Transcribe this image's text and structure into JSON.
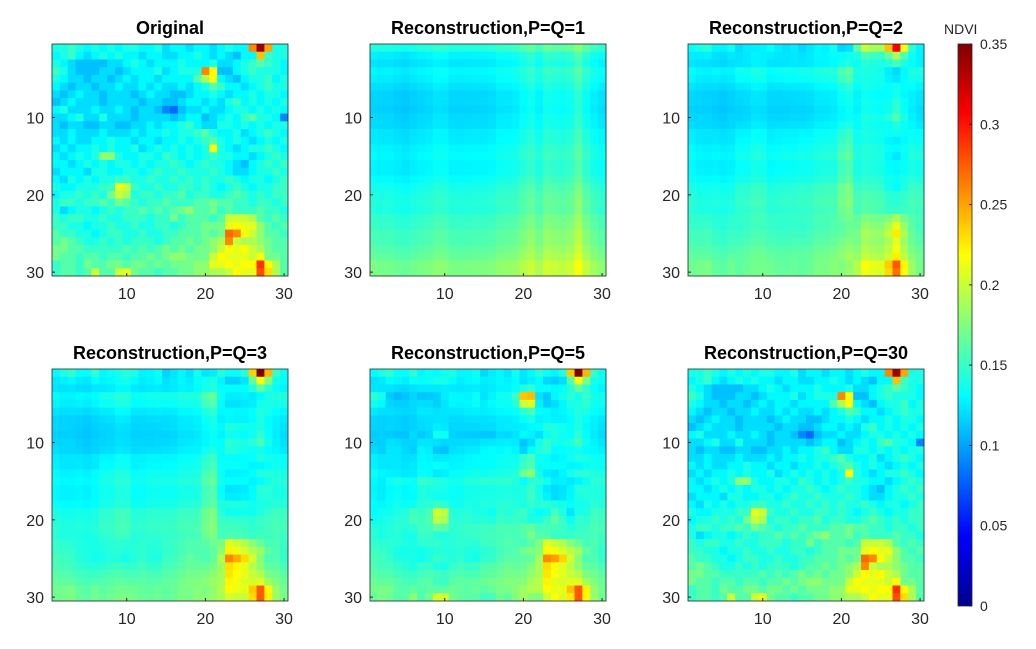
{
  "chart_data": {
    "type": "heatmap",
    "colormap": "jet",
    "colorbar": {
      "label": "NDVI",
      "range": [
        0,
        0.35
      ],
      "ticks": [
        "0",
        "0.05",
        "0.1",
        "0.15",
        "0.2",
        "0.25",
        "0.3",
        "0.35"
      ]
    },
    "x_ticks": [
      "10",
      "20",
      "30"
    ],
    "y_ticks": [
      "10",
      "20",
      "30"
    ],
    "xlim": [
      0.5,
      30.5
    ],
    "ylim": [
      0.5,
      30.5
    ],
    "panels": [
      {
        "title": "Original",
        "components": 30
      },
      {
        "title": "Reconstruction,P=Q=1",
        "components": 1
      },
      {
        "title": "Reconstruction,P=Q=2",
        "components": 2
      },
      {
        "title": "Reconstruction,P=Q=3",
        "components": 3
      },
      {
        "title": "Reconstruction,P=Q=5",
        "components": 5
      },
      {
        "title": "Reconstruction,P=Q=30",
        "components": 30
      }
    ],
    "original_matrix": [
      [
        0.14,
        0.14,
        0.15,
        0.14,
        0.13,
        0.14,
        0.13,
        0.14,
        0.13,
        0.14,
        0.14,
        0.13,
        0.13,
        0.14,
        0.12,
        0.13,
        0.13,
        0.12,
        0.13,
        0.13,
        0.12,
        0.13,
        0.14,
        0.13,
        0.13,
        0.26,
        0.34,
        0.25,
        0.14,
        0.14
      ],
      [
        0.13,
        0.14,
        0.15,
        0.13,
        0.12,
        0.13,
        0.14,
        0.13,
        0.14,
        0.13,
        0.13,
        0.12,
        0.13,
        0.13,
        0.12,
        0.12,
        0.13,
        0.13,
        0.14,
        0.13,
        0.12,
        0.13,
        0.12,
        0.11,
        0.13,
        0.13,
        0.24,
        0.15,
        0.14,
        0.14
      ],
      [
        0.14,
        0.13,
        0.12,
        0.11,
        0.11,
        0.11,
        0.11,
        0.12,
        0.12,
        0.13,
        0.14,
        0.13,
        0.12,
        0.13,
        0.13,
        0.13,
        0.14,
        0.13,
        0.13,
        0.13,
        0.14,
        0.12,
        0.12,
        0.13,
        0.14,
        0.15,
        0.16,
        0.15,
        0.14,
        0.13
      ],
      [
        0.15,
        0.14,
        0.12,
        0.11,
        0.11,
        0.11,
        0.12,
        0.12,
        0.11,
        0.12,
        0.13,
        0.13,
        0.13,
        0.14,
        0.12,
        0.13,
        0.14,
        0.14,
        0.14,
        0.26,
        0.22,
        0.11,
        0.11,
        0.13,
        0.14,
        0.15,
        0.14,
        0.14,
        0.14,
        0.13
      ],
      [
        0.14,
        0.13,
        0.12,
        0.12,
        0.11,
        0.12,
        0.12,
        0.11,
        0.12,
        0.13,
        0.12,
        0.13,
        0.13,
        0.12,
        0.13,
        0.13,
        0.13,
        0.13,
        0.16,
        0.19,
        0.22,
        0.13,
        0.12,
        0.11,
        0.13,
        0.14,
        0.14,
        0.15,
        0.13,
        0.14
      ],
      [
        0.13,
        0.12,
        0.11,
        0.12,
        0.12,
        0.11,
        0.12,
        0.12,
        0.13,
        0.12,
        0.12,
        0.13,
        0.12,
        0.13,
        0.12,
        0.12,
        0.13,
        0.12,
        0.13,
        0.14,
        0.16,
        0.15,
        0.13,
        0.13,
        0.12,
        0.13,
        0.14,
        0.15,
        0.14,
        0.14
      ],
      [
        0.12,
        0.11,
        0.12,
        0.13,
        0.12,
        0.12,
        0.11,
        0.12,
        0.12,
        0.12,
        0.11,
        0.12,
        0.13,
        0.12,
        0.12,
        0.11,
        0.11,
        0.12,
        0.13,
        0.13,
        0.14,
        0.13,
        0.12,
        0.13,
        0.13,
        0.14,
        0.13,
        0.14,
        0.14,
        0.13
      ],
      [
        0.11,
        0.12,
        0.13,
        0.12,
        0.12,
        0.12,
        0.11,
        0.12,
        0.12,
        0.12,
        0.12,
        0.11,
        0.12,
        0.12,
        0.11,
        0.11,
        0.12,
        0.13,
        0.13,
        0.12,
        0.13,
        0.12,
        0.14,
        0.15,
        0.13,
        0.14,
        0.13,
        0.14,
        0.13,
        0.14
      ],
      [
        0.13,
        0.14,
        0.12,
        0.12,
        0.12,
        0.13,
        0.12,
        0.12,
        0.13,
        0.12,
        0.11,
        0.12,
        0.12,
        0.11,
        0.09,
        0.08,
        0.11,
        0.12,
        0.12,
        0.13,
        0.12,
        0.12,
        0.13,
        0.14,
        0.14,
        0.13,
        0.14,
        0.13,
        0.14,
        0.13
      ],
      [
        0.12,
        0.12,
        0.13,
        0.14,
        0.12,
        0.12,
        0.14,
        0.12,
        0.12,
        0.12,
        0.11,
        0.12,
        0.12,
        0.12,
        0.12,
        0.11,
        0.12,
        0.13,
        0.13,
        0.11,
        0.12,
        0.13,
        0.14,
        0.13,
        0.15,
        0.16,
        0.14,
        0.14,
        0.13,
        0.09
      ],
      [
        0.12,
        0.11,
        0.12,
        0.12,
        0.11,
        0.11,
        0.12,
        0.12,
        0.11,
        0.11,
        0.12,
        0.12,
        0.13,
        0.12,
        0.13,
        0.13,
        0.14,
        0.15,
        0.13,
        0.12,
        0.12,
        0.14,
        0.14,
        0.13,
        0.14,
        0.13,
        0.14,
        0.13,
        0.14,
        0.14
      ],
      [
        0.12,
        0.12,
        0.13,
        0.12,
        0.12,
        0.12,
        0.13,
        0.12,
        0.12,
        0.12,
        0.13,
        0.12,
        0.13,
        0.13,
        0.14,
        0.13,
        0.14,
        0.14,
        0.15,
        0.16,
        0.14,
        0.13,
        0.13,
        0.14,
        0.12,
        0.13,
        0.14,
        0.15,
        0.14,
        0.13
      ],
      [
        0.13,
        0.12,
        0.13,
        0.12,
        0.12,
        0.13,
        0.13,
        0.14,
        0.13,
        0.13,
        0.12,
        0.13,
        0.13,
        0.12,
        0.13,
        0.13,
        0.14,
        0.13,
        0.14,
        0.15,
        0.16,
        0.14,
        0.13,
        0.14,
        0.13,
        0.12,
        0.13,
        0.14,
        0.13,
        0.14
      ],
      [
        0.12,
        0.13,
        0.12,
        0.13,
        0.13,
        0.14,
        0.13,
        0.14,
        0.13,
        0.13,
        0.14,
        0.12,
        0.13,
        0.14,
        0.13,
        0.14,
        0.13,
        0.14,
        0.13,
        0.14,
        0.22,
        0.14,
        0.13,
        0.12,
        0.13,
        0.14,
        0.14,
        0.15,
        0.14,
        0.13
      ],
      [
        0.13,
        0.12,
        0.13,
        0.14,
        0.13,
        0.14,
        0.18,
        0.18,
        0.14,
        0.13,
        0.13,
        0.14,
        0.14,
        0.13,
        0.15,
        0.14,
        0.13,
        0.14,
        0.13,
        0.14,
        0.15,
        0.14,
        0.14,
        0.13,
        0.13,
        0.12,
        0.13,
        0.14,
        0.15,
        0.14
      ],
      [
        0.13,
        0.13,
        0.12,
        0.13,
        0.14,
        0.13,
        0.14,
        0.13,
        0.14,
        0.14,
        0.13,
        0.14,
        0.13,
        0.14,
        0.14,
        0.15,
        0.14,
        0.13,
        0.14,
        0.15,
        0.14,
        0.14,
        0.13,
        0.12,
        0.11,
        0.13,
        0.14,
        0.15,
        0.14,
        0.15
      ],
      [
        0.12,
        0.13,
        0.13,
        0.13,
        0.12,
        0.14,
        0.14,
        0.13,
        0.13,
        0.14,
        0.14,
        0.13,
        0.14,
        0.15,
        0.14,
        0.14,
        0.15,
        0.14,
        0.14,
        0.14,
        0.15,
        0.14,
        0.13,
        0.12,
        0.12,
        0.13,
        0.14,
        0.14,
        0.15,
        0.14
      ],
      [
        0.13,
        0.12,
        0.14,
        0.13,
        0.14,
        0.13,
        0.14,
        0.14,
        0.15,
        0.15,
        0.14,
        0.14,
        0.15,
        0.14,
        0.14,
        0.15,
        0.14,
        0.15,
        0.14,
        0.15,
        0.14,
        0.14,
        0.15,
        0.14,
        0.13,
        0.14,
        0.14,
        0.13,
        0.14,
        0.15
      ],
      [
        0.14,
        0.13,
        0.13,
        0.14,
        0.14,
        0.14,
        0.15,
        0.15,
        0.21,
        0.2,
        0.15,
        0.14,
        0.14,
        0.15,
        0.14,
        0.14,
        0.15,
        0.15,
        0.14,
        0.15,
        0.14,
        0.13,
        0.14,
        0.15,
        0.14,
        0.13,
        0.14,
        0.14,
        0.15,
        0.15
      ],
      [
        0.13,
        0.14,
        0.14,
        0.15,
        0.14,
        0.15,
        0.14,
        0.17,
        0.2,
        0.19,
        0.14,
        0.15,
        0.15,
        0.14,
        0.15,
        0.15,
        0.16,
        0.14,
        0.15,
        0.15,
        0.14,
        0.14,
        0.15,
        0.16,
        0.15,
        0.14,
        0.15,
        0.14,
        0.15,
        0.15
      ],
      [
        0.14,
        0.15,
        0.15,
        0.14,
        0.15,
        0.15,
        0.16,
        0.15,
        0.17,
        0.16,
        0.15,
        0.14,
        0.15,
        0.15,
        0.16,
        0.15,
        0.15,
        0.15,
        0.16,
        0.16,
        0.17,
        0.16,
        0.16,
        0.15,
        0.15,
        0.14,
        0.15,
        0.15,
        0.14,
        0.15
      ],
      [
        0.14,
        0.12,
        0.13,
        0.14,
        0.14,
        0.13,
        0.14,
        0.15,
        0.14,
        0.15,
        0.15,
        0.16,
        0.15,
        0.16,
        0.15,
        0.16,
        0.17,
        0.18,
        0.16,
        0.16,
        0.17,
        0.15,
        0.16,
        0.15,
        0.15,
        0.15,
        0.16,
        0.15,
        0.15,
        0.14
      ],
      [
        0.15,
        0.14,
        0.15,
        0.15,
        0.14,
        0.14,
        0.15,
        0.14,
        0.14,
        0.15,
        0.15,
        0.15,
        0.14,
        0.15,
        0.15,
        0.17,
        0.15,
        0.16,
        0.16,
        0.16,
        0.15,
        0.16,
        0.2,
        0.2,
        0.2,
        0.19,
        0.16,
        0.15,
        0.16,
        0.15
      ],
      [
        0.15,
        0.15,
        0.14,
        0.14,
        0.13,
        0.14,
        0.14,
        0.15,
        0.14,
        0.14,
        0.15,
        0.14,
        0.14,
        0.15,
        0.15,
        0.14,
        0.15,
        0.16,
        0.16,
        0.17,
        0.17,
        0.17,
        0.21,
        0.22,
        0.21,
        0.21,
        0.18,
        0.16,
        0.15,
        0.16
      ],
      [
        0.16,
        0.15,
        0.15,
        0.14,
        0.14,
        0.13,
        0.14,
        0.15,
        0.15,
        0.14,
        0.14,
        0.15,
        0.14,
        0.14,
        0.15,
        0.15,
        0.16,
        0.16,
        0.16,
        0.17,
        0.16,
        0.17,
        0.27,
        0.26,
        0.22,
        0.2,
        0.18,
        0.16,
        0.16,
        0.15
      ],
      [
        0.16,
        0.17,
        0.16,
        0.15,
        0.14,
        0.14,
        0.15,
        0.14,
        0.15,
        0.14,
        0.15,
        0.15,
        0.15,
        0.14,
        0.15,
        0.16,
        0.16,
        0.17,
        0.16,
        0.17,
        0.18,
        0.19,
        0.26,
        0.2,
        0.19,
        0.19,
        0.18,
        0.17,
        0.16,
        0.16
      ],
      [
        0.17,
        0.17,
        0.16,
        0.16,
        0.15,
        0.15,
        0.15,
        0.15,
        0.15,
        0.16,
        0.15,
        0.16,
        0.15,
        0.16,
        0.17,
        0.16,
        0.17,
        0.16,
        0.17,
        0.17,
        0.18,
        0.2,
        0.22,
        0.21,
        0.22,
        0.2,
        0.19,
        0.17,
        0.16,
        0.16
      ],
      [
        0.17,
        0.16,
        0.16,
        0.15,
        0.16,
        0.16,
        0.15,
        0.16,
        0.16,
        0.15,
        0.16,
        0.16,
        0.17,
        0.16,
        0.17,
        0.18,
        0.18,
        0.17,
        0.17,
        0.17,
        0.2,
        0.22,
        0.21,
        0.21,
        0.21,
        0.2,
        0.22,
        0.17,
        0.17,
        0.16
      ],
      [
        0.15,
        0.16,
        0.16,
        0.15,
        0.17,
        0.16,
        0.16,
        0.17,
        0.17,
        0.16,
        0.17,
        0.17,
        0.16,
        0.17,
        0.16,
        0.17,
        0.17,
        0.17,
        0.18,
        0.18,
        0.21,
        0.21,
        0.22,
        0.21,
        0.22,
        0.22,
        0.29,
        0.22,
        0.19,
        0.16
      ],
      [
        0.15,
        0.16,
        0.16,
        0.15,
        0.16,
        0.2,
        0.16,
        0.16,
        0.2,
        0.21,
        0.17,
        0.16,
        0.16,
        0.15,
        0.16,
        0.16,
        0.17,
        0.17,
        0.18,
        0.18,
        0.19,
        0.19,
        0.2,
        0.22,
        0.21,
        0.21,
        0.28,
        0.23,
        0.19,
        0.16
      ]
    ]
  }
}
